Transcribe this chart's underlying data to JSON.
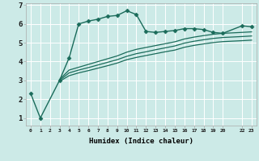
{
  "xlabel": "Humidex (Indice chaleur)",
  "ylabel": "",
  "background_color": "#cceae7",
  "grid_color": "#ffffff",
  "line_color": "#1a6b5a",
  "xlim": [
    -0.5,
    23.5
  ],
  "ylim": [
    0.6,
    7.1
  ],
  "xticks": [
    0,
    1,
    2,
    3,
    4,
    5,
    6,
    7,
    8,
    9,
    10,
    11,
    12,
    13,
    14,
    15,
    16,
    17,
    18,
    19,
    20,
    22,
    23
  ],
  "xtick_labels": [
    "0",
    "1",
    "2",
    "3",
    "4",
    "5",
    "6",
    "7",
    "8",
    "9",
    "10",
    "11",
    "12",
    "13",
    "14",
    "15",
    "16",
    "17",
    "18",
    "19",
    "20",
    "22",
    "23"
  ],
  "yticks": [
    1,
    2,
    3,
    4,
    5,
    6,
    7
  ],
  "series": [
    {
      "x": [
        0,
        1,
        3,
        4,
        5,
        6,
        7,
        8,
        9,
        10,
        11,
        12,
        13,
        14,
        15,
        16,
        17,
        18,
        19,
        20,
        22,
        23
      ],
      "y": [
        2.3,
        1.0,
        3.0,
        4.2,
        6.0,
        6.15,
        6.25,
        6.4,
        6.45,
        6.7,
        6.5,
        5.6,
        5.55,
        5.6,
        5.65,
        5.75,
        5.75,
        5.7,
        5.55,
        5.5,
        5.9,
        5.85
      ],
      "marker": "D",
      "markersize": 2.5,
      "linestyle": "-",
      "linewidth": 1.0
    },
    {
      "x": [
        3,
        4,
        5,
        6,
        7,
        8,
        9,
        10,
        11,
        12,
        13,
        14,
        15,
        16,
        17,
        18,
        19,
        20,
        22,
        23
      ],
      "y": [
        3.05,
        3.55,
        3.7,
        3.85,
        4.0,
        4.15,
        4.3,
        4.5,
        4.65,
        4.75,
        4.85,
        4.95,
        5.05,
        5.2,
        5.3,
        5.38,
        5.45,
        5.5,
        5.55,
        5.58
      ],
      "marker": null,
      "linestyle": "-",
      "linewidth": 0.9
    },
    {
      "x": [
        3,
        4,
        5,
        6,
        7,
        8,
        9,
        10,
        11,
        12,
        13,
        14,
        15,
        16,
        17,
        18,
        19,
        20,
        22,
        23
      ],
      "y": [
        3.0,
        3.4,
        3.55,
        3.68,
        3.82,
        3.96,
        4.1,
        4.28,
        4.42,
        4.52,
        4.63,
        4.73,
        4.83,
        4.98,
        5.08,
        5.16,
        5.23,
        5.28,
        5.33,
        5.36
      ],
      "marker": null,
      "linestyle": "-",
      "linewidth": 0.9
    },
    {
      "x": [
        3,
        4,
        5,
        6,
        7,
        8,
        9,
        10,
        11,
        12,
        13,
        14,
        15,
        16,
        17,
        18,
        19,
        20,
        22,
        23
      ],
      "y": [
        2.95,
        3.25,
        3.4,
        3.52,
        3.65,
        3.78,
        3.92,
        4.1,
        4.22,
        4.32,
        4.42,
        4.52,
        4.61,
        4.76,
        4.86,
        4.94,
        5.01,
        5.06,
        5.11,
        5.14
      ],
      "marker": null,
      "linestyle": "-",
      "linewidth": 0.9
    }
  ]
}
